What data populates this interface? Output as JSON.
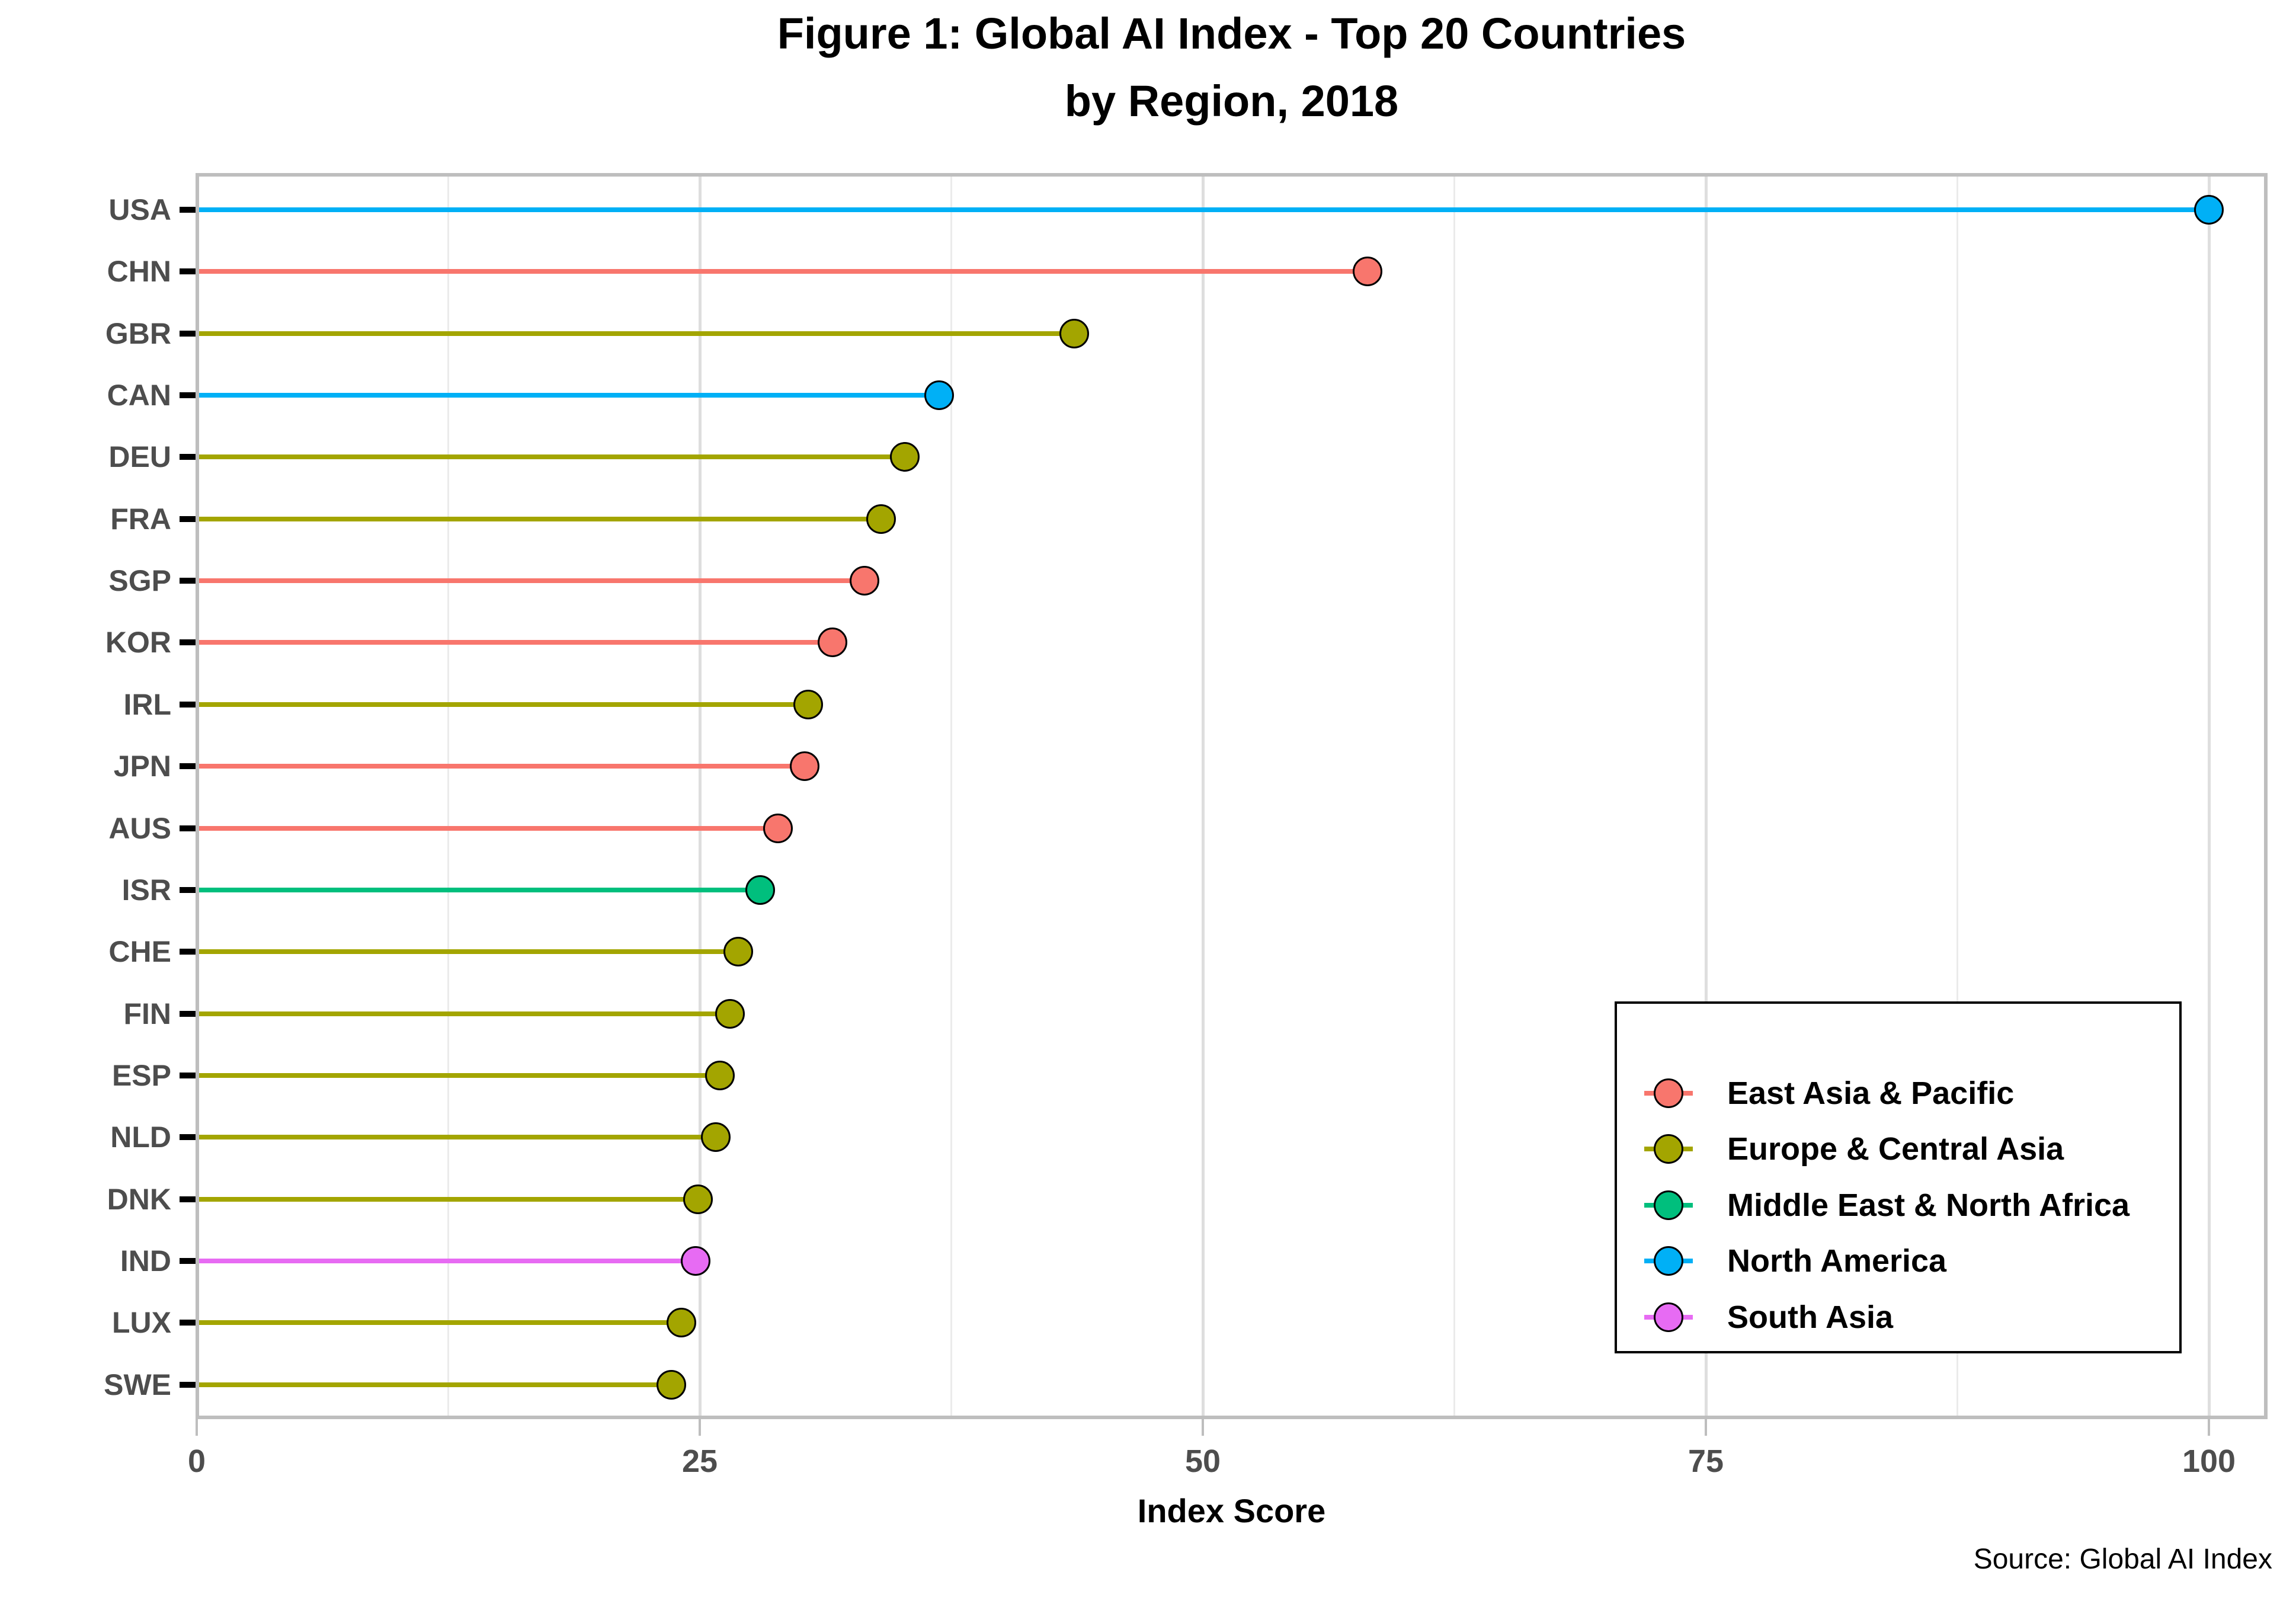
{
  "title": {
    "line1": "Figure 1: Global AI Index - Top 20 Countries",
    "line2": "by Region, 2018"
  },
  "source_note": "Source: Global AI Index",
  "chart_data": {
    "type": "scatter",
    "style": "horizontal-lollipop",
    "title": "Figure 1: Global AI Index - Top 20 Countries by Region, 2018",
    "xlabel": "Index Score",
    "ylabel": "",
    "xlim": [
      0,
      103
    ],
    "x_major_ticks": [
      0,
      25,
      50,
      75,
      100
    ],
    "x_minor_gridlines": [
      12.5,
      37.5,
      62.5,
      87.5
    ],
    "grid": "vertical major and minor gridlines only, no horizontal gridlines",
    "legend_position": "inside bottom-right",
    "regions": [
      {
        "name": "East Asia & Pacific",
        "color": "#F8766D"
      },
      {
        "name": "Europe & Central Asia",
        "color": "#A3A500"
      },
      {
        "name": "Middle East & North Africa",
        "color": "#00BF7D"
      },
      {
        "name": "North America",
        "color": "#00B0F6"
      },
      {
        "name": "South Asia",
        "color": "#E76BF3"
      }
    ],
    "categories": [
      "USA",
      "CHN",
      "GBR",
      "CAN",
      "DEU",
      "FRA",
      "SGP",
      "KOR",
      "IRL",
      "JPN",
      "AUS",
      "ISR",
      "CHE",
      "FIN",
      "ESP",
      "NLD",
      "DNK",
      "IND",
      "LUX",
      "SWE"
    ],
    "points": [
      {
        "country": "USA",
        "region": "North America",
        "value": 100.0
      },
      {
        "country": "CHN",
        "region": "East Asia & Pacific",
        "value": 58.2
      },
      {
        "country": "GBR",
        "region": "Europe & Central Asia",
        "value": 43.6
      },
      {
        "country": "CAN",
        "region": "North America",
        "value": 36.9
      },
      {
        "country": "DEU",
        "region": "Europe & Central Asia",
        "value": 35.2
      },
      {
        "country": "FRA",
        "region": "Europe & Central Asia",
        "value": 34.0
      },
      {
        "country": "SGP",
        "region": "East Asia & Pacific",
        "value": 33.2
      },
      {
        "country": "KOR",
        "region": "East Asia & Pacific",
        "value": 31.6
      },
      {
        "country": "IRL",
        "region": "Europe & Central Asia",
        "value": 30.4
      },
      {
        "country": "JPN",
        "region": "East Asia & Pacific",
        "value": 30.2
      },
      {
        "country": "AUS",
        "region": "East Asia & Pacific",
        "value": 28.9
      },
      {
        "country": "ISR",
        "region": "Middle East & North Africa",
        "value": 28.0
      },
      {
        "country": "CHE",
        "region": "Europe & Central Asia",
        "value": 26.9
      },
      {
        "country": "FIN",
        "region": "Europe & Central Asia",
        "value": 26.5
      },
      {
        "country": "ESP",
        "region": "Europe & Central Asia",
        "value": 26.0
      },
      {
        "country": "NLD",
        "region": "Europe & Central Asia",
        "value": 25.8
      },
      {
        "country": "DNK",
        "region": "Europe & Central Asia",
        "value": 24.9
      },
      {
        "country": "IND",
        "region": "South Asia",
        "value": 24.8
      },
      {
        "country": "LUX",
        "region": "Europe & Central Asia",
        "value": 24.1
      },
      {
        "country": "SWE",
        "region": "Europe & Central Asia",
        "value": 23.6
      }
    ]
  },
  "colors": {
    "axis_text": "#4D4D4D",
    "panel_border": "#BEBEBE",
    "grid_major": "#DEDEDE",
    "grid_minor": "#EBEBEB",
    "dot_stroke": "#000000",
    "background": "#FFFFFF"
  }
}
